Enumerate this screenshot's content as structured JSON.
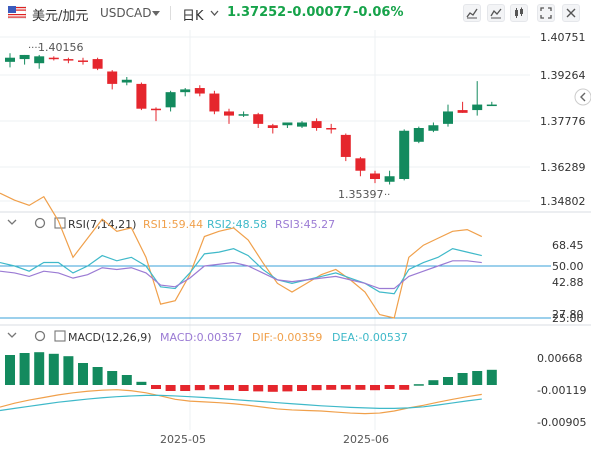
{
  "header": {
    "pair": "美元/加元",
    "symbol": "USDCAD",
    "timeframe": "日K",
    "last": "1.37252",
    "change": "-0.00077",
    "change_pct": "-0.06%",
    "colors": {
      "down": "#16a34a",
      "text": "#333333"
    }
  },
  "icons": [
    "flag-icon",
    "caret-down-icon",
    "chevron-down-icon",
    "chart-type-icon",
    "indicator-icon",
    "candle-icon",
    "fullscreen-icon",
    "close-icon",
    "collapse-icon"
  ],
  "price_panel": {
    "axis_labels": [
      "1.40751",
      "1.39264",
      "1.37776",
      "1.36289",
      "1.34802"
    ],
    "high_annotation": "1.40156",
    "low_annotation": "1.35397",
    "colors": {
      "up": "#138a5e",
      "down": "#e5262d",
      "grid": "#eef0f3"
    },
    "candles": [
      {
        "o": 1.3985,
        "h": 1.4016,
        "l": 1.3965,
        "c": 1.4
      },
      {
        "o": 1.3995,
        "h": 1.401,
        "l": 1.3975,
        "c": 1.401
      },
      {
        "o": 1.398,
        "h": 1.401,
        "l": 1.396,
        "c": 1.4005
      },
      {
        "o": 1.4,
        "h": 1.4005,
        "l": 1.399,
        "c": 1.3995
      },
      {
        "o": 1.3995,
        "h": 1.4,
        "l": 1.398,
        "c": 1.399
      },
      {
        "o": 1.399,
        "h": 1.4,
        "l": 1.3975,
        "c": 1.3985
      },
      {
        "o": 1.3995,
        "h": 1.4,
        "l": 1.3955,
        "c": 1.396
      },
      {
        "o": 1.395,
        "h": 1.3955,
        "l": 1.3885,
        "c": 1.3905
      },
      {
        "o": 1.391,
        "h": 1.393,
        "l": 1.39,
        "c": 1.392
      },
      {
        "o": 1.3905,
        "h": 1.391,
        "l": 1.381,
        "c": 1.3815
      },
      {
        "o": 1.3815,
        "h": 1.382,
        "l": 1.377,
        "c": 1.381
      },
      {
        "o": 1.382,
        "h": 1.388,
        "l": 1.3805,
        "c": 1.3875
      },
      {
        "o": 1.3875,
        "h": 1.389,
        "l": 1.386,
        "c": 1.3885
      },
      {
        "o": 1.389,
        "h": 1.39,
        "l": 1.386,
        "c": 1.387
      },
      {
        "o": 1.387,
        "h": 1.388,
        "l": 1.3795,
        "c": 1.3805
      },
      {
        "o": 1.3805,
        "h": 1.3815,
        "l": 1.376,
        "c": 1.379
      },
      {
        "o": 1.3795,
        "h": 1.3805,
        "l": 1.3785,
        "c": 1.3795
      },
      {
        "o": 1.3795,
        "h": 1.38,
        "l": 1.3745,
        "c": 1.376
      },
      {
        "o": 1.3755,
        "h": 1.376,
        "l": 1.3725,
        "c": 1.3745
      },
      {
        "o": 1.3755,
        "h": 1.3765,
        "l": 1.3745,
        "c": 1.3765
      },
      {
        "o": 1.375,
        "h": 1.377,
        "l": 1.3745,
        "c": 1.3765
      },
      {
        "o": 1.377,
        "h": 1.378,
        "l": 1.3735,
        "c": 1.3745
      },
      {
        "o": 1.3745,
        "h": 1.376,
        "l": 1.3725,
        "c": 1.374
      },
      {
        "o": 1.372,
        "h": 1.3725,
        "l": 1.3625,
        "c": 1.364
      },
      {
        "o": 1.3635,
        "h": 1.364,
        "l": 1.357,
        "c": 1.359
      },
      {
        "o": 1.358,
        "h": 1.359,
        "l": 1.3545,
        "c": 1.356
      },
      {
        "o": 1.355,
        "h": 1.359,
        "l": 1.354,
        "c": 1.357
      },
      {
        "o": 1.356,
        "h": 1.374,
        "l": 1.3555,
        "c": 1.3735
      },
      {
        "o": 1.3695,
        "h": 1.375,
        "l": 1.369,
        "c": 1.3745
      },
      {
        "o": 1.3735,
        "h": 1.3765,
        "l": 1.373,
        "c": 1.3755
      },
      {
        "o": 1.376,
        "h": 1.383,
        "l": 1.375,
        "c": 1.3805
      },
      {
        "o": 1.381,
        "h": 1.384,
        "l": 1.38,
        "c": 1.38
      },
      {
        "o": 1.381,
        "h": 1.3915,
        "l": 1.379,
        "c": 1.383
      },
      {
        "o": 1.383,
        "h": 1.384,
        "l": 1.3825,
        "c": 1.383
      }
    ]
  },
  "rsi_panel": {
    "title": "RSI(7,14,21)",
    "rsi1": "RSI1:59.44",
    "rsi2": "RSI2:48.58",
    "rsi3": "RSI3:45.27",
    "axis_labels": [
      "68.45",
      "50.00",
      "42.88",
      "27.80",
      "25.00"
    ],
    "levels": [
      50,
      20
    ],
    "colors": {
      "rsi1": "#f0a04b",
      "rsi2": "#3fb9c9",
      "rsi3": "#9b7bd4",
      "level": "#3aa0d8"
    },
    "rsi1_values": [
      92,
      88,
      85,
      90,
      76,
      55,
      66,
      77,
      70,
      72,
      55,
      28,
      30,
      45,
      67,
      70,
      72,
      65,
      52,
      40,
      35,
      40,
      45,
      48,
      42,
      35,
      22,
      20,
      55,
      62,
      66,
      70,
      71,
      67
    ],
    "rsi2_values": [
      52,
      50,
      47,
      52,
      52,
      46,
      50,
      56,
      53,
      55,
      50,
      38,
      37,
      46,
      57,
      58,
      60,
      56,
      48,
      42,
      40,
      42,
      44,
      46,
      43,
      40,
      35,
      34,
      48,
      52,
      55,
      60,
      58,
      56
    ],
    "rsi3_values": [
      47,
      46,
      44,
      47,
      46,
      43,
      45,
      49,
      48,
      49,
      46,
      39,
      38,
      43,
      50,
      51,
      52,
      50,
      46,
      42,
      41,
      42,
      43,
      44,
      42,
      40,
      37,
      37,
      44,
      47,
      50,
      53,
      53,
      52
    ]
  },
  "macd_panel": {
    "title": "MACD(12,26,9)",
    "macd": "MACD:0.00357",
    "dif": "DIF:-0.00359",
    "dea": "DEA:-0.00537",
    "axis_labels": [
      "0.00668",
      "-0.00119",
      "-0.00905"
    ],
    "colors": {
      "dif": "#f0a04b",
      "dea": "#3fb9c9",
      "up": "#138a5e",
      "down": "#e5262d"
    },
    "hist": [
      0.0075,
      0.008,
      0.0082,
      0.0078,
      0.0072,
      0.0055,
      0.0045,
      0.0035,
      0.0025,
      0.0008,
      -0.001,
      -0.0015,
      -0.0015,
      -0.0013,
      -0.0011,
      -0.0013,
      -0.0015,
      -0.0016,
      -0.0017,
      -0.0016,
      -0.0015,
      -0.0013,
      -0.0012,
      -0.0011,
      -0.0012,
      -0.0013,
      -0.001,
      -0.0012,
      0.0002,
      0.0012,
      0.002,
      0.003,
      0.0035,
      0.0038
    ],
    "dif_values": [
      -0.0085,
      -0.007,
      -0.0058,
      -0.0048,
      -0.0038,
      -0.003,
      -0.0024,
      -0.002,
      -0.0018,
      -0.0022,
      -0.003,
      -0.0042,
      -0.0055,
      -0.0062,
      -0.0065,
      -0.0068,
      -0.0072,
      -0.0078,
      -0.0085,
      -0.0092,
      -0.0096,
      -0.0098,
      -0.01,
      -0.0104,
      -0.0108,
      -0.011,
      -0.0108,
      -0.01,
      -0.0088,
      -0.0078,
      -0.0066,
      -0.0055,
      -0.0045,
      -0.0036
    ],
    "dea_values": [
      -0.0098,
      -0.009,
      -0.0082,
      -0.0074,
      -0.0066,
      -0.006,
      -0.0054,
      -0.0049,
      -0.0045,
      -0.0042,
      -0.004,
      -0.004,
      -0.0042,
      -0.0045,
      -0.0048,
      -0.0052,
      -0.0056,
      -0.006,
      -0.0064,
      -0.0068,
      -0.0072,
      -0.0076,
      -0.008,
      -0.0083,
      -0.0086,
      -0.0088,
      -0.009,
      -0.009,
      -0.0088,
      -0.0084,
      -0.0077,
      -0.0069,
      -0.0061,
      -0.0054
    ]
  },
  "x_axis": {
    "labels": [
      "2025-05",
      "2025-06"
    ],
    "label_index": [
      11,
      22
    ]
  }
}
